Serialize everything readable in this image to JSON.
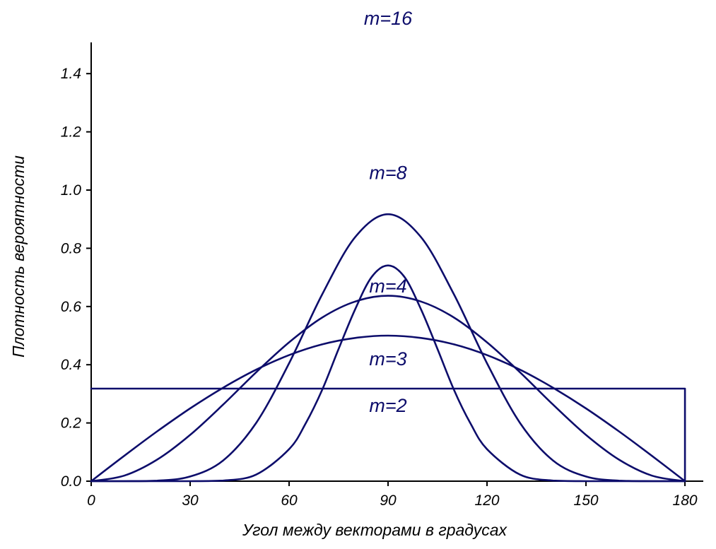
{
  "colors": {
    "series": "#0d0d6b",
    "axis": "#000000"
  },
  "chart_data": {
    "type": "line",
    "title": "",
    "xlabel": "Угол между векторами в градусах",
    "ylabel": "Плотность вероятности",
    "xlim": [
      0,
      185
    ],
    "ylim": [
      0,
      1.5
    ],
    "grid": false,
    "legend": "none",
    "x_ticks": [
      "0",
      "30",
      "60",
      "90",
      "120",
      "150",
      "180"
    ],
    "y_ticks": [
      "0.0",
      "0.2",
      "0.4",
      "0.6",
      "0.8",
      "1.0",
      "1.2",
      "1.4"
    ],
    "x_tick_values": [
      0,
      30,
      60,
      90,
      120,
      150,
      180
    ],
    "y_tick_values": [
      0,
      0.2,
      0.4,
      0.6,
      0.8,
      1.0,
      1.2,
      1.4
    ],
    "series": [
      {
        "label": "m=2",
        "label_at": [
          90,
          0.26
        ],
        "x": [
          0,
          180,
          180
        ],
        "y": [
          0.318,
          0.318,
          0
        ]
      },
      {
        "label": "m=3",
        "label_at": [
          90,
          0.42
        ],
        "x": [
          0,
          10,
          20,
          30,
          40,
          50,
          60,
          70,
          80,
          90,
          100,
          110,
          120,
          130,
          140,
          150,
          160,
          170,
          180
        ],
        "y": [
          0,
          0.087,
          0.171,
          0.25,
          0.321,
          0.383,
          0.433,
          0.47,
          0.492,
          0.5,
          0.492,
          0.47,
          0.433,
          0.383,
          0.321,
          0.25,
          0.171,
          0.087,
          0
        ]
      },
      {
        "label": "m=4",
        "label_at": [
          90,
          0.67
        ],
        "x": [
          0,
          10,
          20,
          30,
          40,
          50,
          60,
          70,
          80,
          90,
          100,
          110,
          120,
          130,
          140,
          150,
          160,
          170,
          180
        ],
        "y": [
          0,
          0.019,
          0.074,
          0.159,
          0.263,
          0.374,
          0.477,
          0.562,
          0.617,
          0.637,
          0.617,
          0.562,
          0.477,
          0.374,
          0.263,
          0.159,
          0.074,
          0.019,
          0
        ]
      },
      {
        "label": "m=8",
        "label_at": [
          90,
          1.06
        ],
        "x": [
          0,
          10,
          20,
          30,
          40,
          50,
          60,
          70,
          80,
          90,
          100,
          110,
          120,
          130,
          140,
          150,
          160,
          170,
          180
        ],
        "y": [
          0,
          5.4e-06,
          0.00163,
          0.0159,
          0.0711,
          0.2,
          0.405,
          0.641,
          0.838,
          0.917,
          0.838,
          0.641,
          0.405,
          0.2,
          0.0711,
          0.0159,
          0.00163,
          5.4e-06,
          0
        ]
      },
      {
        "label": "m=16",
        "label_at": [
          90,
          1.59
        ],
        "x": [
          0,
          10,
          20,
          30,
          40,
          50,
          60,
          65,
          70,
          75,
          80,
          85,
          90,
          95,
          100,
          105,
          110,
          115,
          120,
          130,
          140,
          150,
          160,
          170,
          180
        ],
        "y": [
          0,
          0,
          0,
          1.75e-05,
          0.00188,
          0.0225,
          0.11,
          0.198,
          0.313,
          0.454,
          0.59,
          0.701,
          0.741,
          0.701,
          0.59,
          0.454,
          0.313,
          0.198,
          0.11,
          0.0225,
          0.00188,
          1.75e-05,
          0,
          0,
          0
        ]
      }
    ]
  }
}
